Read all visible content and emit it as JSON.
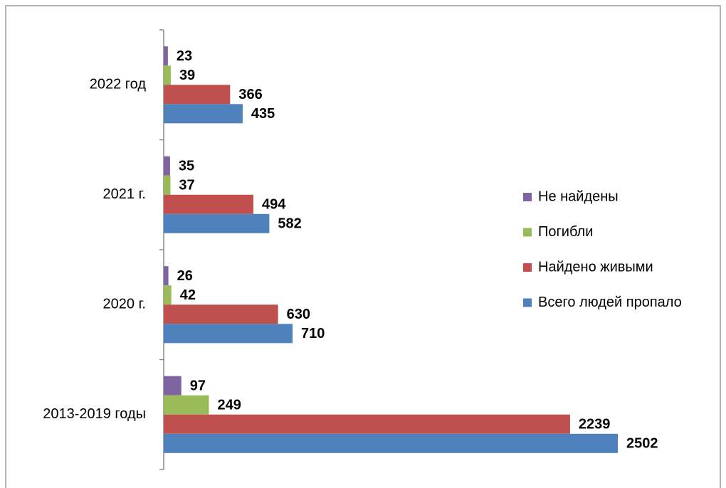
{
  "chart_data": {
    "type": "barh",
    "categories": [
      "2022 год",
      "2021 г.",
      "2020 г.",
      "2013-2019 годы"
    ],
    "series": [
      {
        "name": "Не найдены",
        "color": "#8064a2",
        "values": [
          23,
          35,
          26,
          97
        ]
      },
      {
        "name": "Погибли",
        "color": "#9bbb59",
        "values": [
          39,
          37,
          42,
          249
        ]
      },
      {
        "name": "Найдено живыми",
        "color": "#c0504d",
        "values": [
          366,
          494,
          630,
          2239
        ]
      },
      {
        "name": "Всего людей пропало",
        "color": "#4f81bd",
        "values": [
          435,
          582,
          710,
          2502
        ]
      }
    ],
    "legend": "right"
  }
}
